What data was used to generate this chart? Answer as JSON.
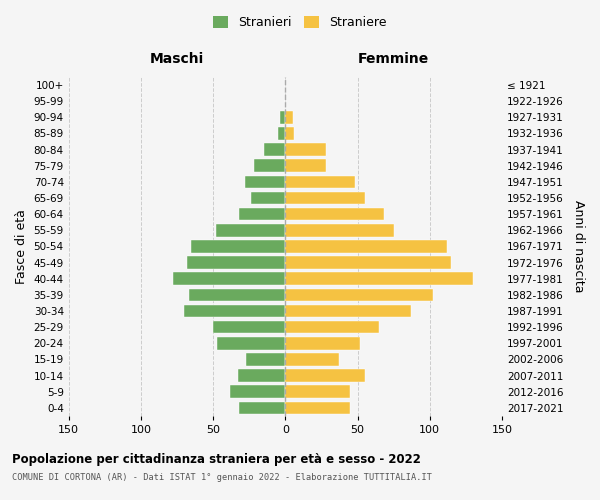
{
  "age_groups_bottom_to_top": [
    "0-4",
    "5-9",
    "10-14",
    "15-19",
    "20-24",
    "25-29",
    "30-34",
    "35-39",
    "40-44",
    "45-49",
    "50-54",
    "55-59",
    "60-64",
    "65-69",
    "70-74",
    "75-79",
    "80-84",
    "85-89",
    "90-94",
    "95-99",
    "100+"
  ],
  "birth_years_bottom_to_top": [
    "2017-2021",
    "2012-2016",
    "2007-2011",
    "2002-2006",
    "1997-2001",
    "1992-1996",
    "1987-1991",
    "1982-1986",
    "1977-1981",
    "1972-1976",
    "1967-1971",
    "1962-1966",
    "1957-1961",
    "1952-1956",
    "1947-1951",
    "1942-1946",
    "1937-1941",
    "1932-1936",
    "1927-1931",
    "1922-1926",
    "≤ 1921"
  ],
  "males_bottom_to_top": [
    32,
    38,
    33,
    27,
    47,
    50,
    70,
    67,
    78,
    68,
    65,
    48,
    32,
    24,
    28,
    22,
    15,
    5,
    4,
    0,
    0
  ],
  "females_bottom_to_top": [
    45,
    45,
    55,
    37,
    52,
    65,
    87,
    102,
    130,
    115,
    112,
    75,
    68,
    55,
    48,
    28,
    28,
    6,
    5,
    0,
    0
  ],
  "male_color": "#6aaa5e",
  "female_color": "#f5c242",
  "title_main": "Popolazione per cittadinanza straniera per età e sesso - 2022",
  "subtitle": "COMUNE DI CORTONA (AR) - Dati ISTAT 1° gennaio 2022 - Elaborazione TUTTITALIA.IT",
  "label_left": "Maschi",
  "label_right": "Femmine",
  "ylabel_left": "Fasce di età",
  "ylabel_right": "Anni di nascita",
  "legend_male": "Stranieri",
  "legend_female": "Straniere",
  "xlim": 150,
  "background_color": "#f5f5f5",
  "grid_color": "#cccccc"
}
